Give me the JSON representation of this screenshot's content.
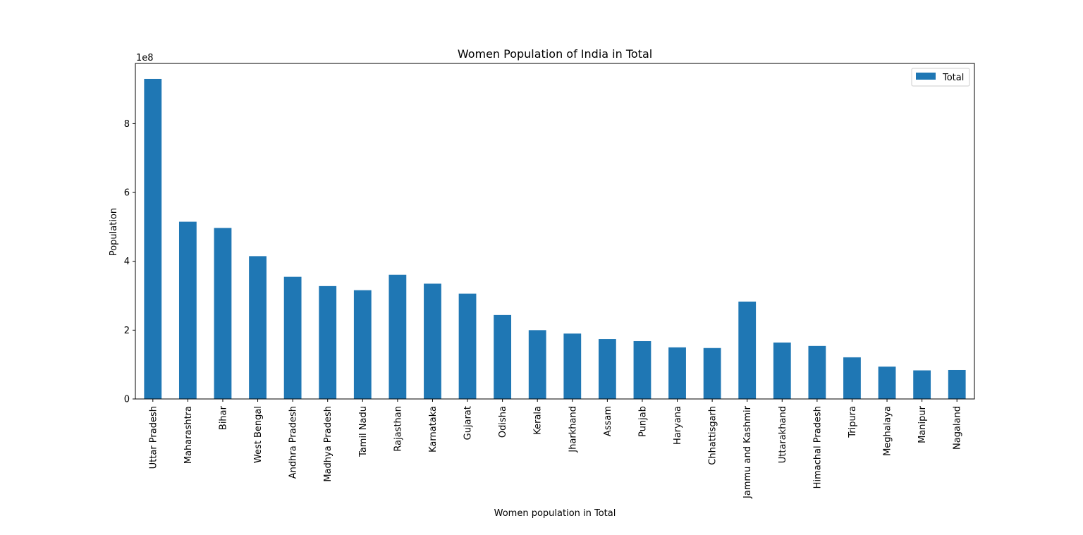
{
  "chart_data": {
    "type": "bar",
    "title": "Women Population of India in Total",
    "xlabel": "Women population in Total",
    "ylabel": "Population",
    "y_offset_label": "1e8",
    "ylim": [
      0,
      9.75
    ],
    "yticks": [
      0,
      2,
      4,
      6,
      8
    ],
    "grid": false,
    "legend_position": "top-right",
    "bar_color": "#1f77b4",
    "categories": [
      "Uttar Pradesh",
      "Maharashtra",
      "Bihar",
      "West Bengal",
      "Andhra Pradesh",
      "Madhya Pradesh",
      "Tamil Nadu",
      "Rajasthan",
      "Karnataka",
      "Gujarat",
      "Odisha",
      "Kerala",
      "Jharkhand",
      "Assam",
      "Punjab",
      "Haryana",
      "Chhattisgarh",
      "Jammu and Kashmir",
      "Uttarakhand",
      "Himachal Pradesh",
      "Tripura",
      "Meghalaya",
      "Manipur",
      "Nagaland"
    ],
    "series": [
      {
        "name": "Total",
        "values": [
          9.3,
          5.15,
          4.97,
          4.15,
          3.55,
          3.28,
          3.16,
          3.61,
          3.35,
          3.06,
          2.44,
          2.0,
          1.9,
          1.74,
          1.68,
          1.5,
          1.48,
          2.83,
          1.64,
          1.54,
          1.21,
          0.94,
          0.83,
          0.84
        ]
      }
    ]
  }
}
